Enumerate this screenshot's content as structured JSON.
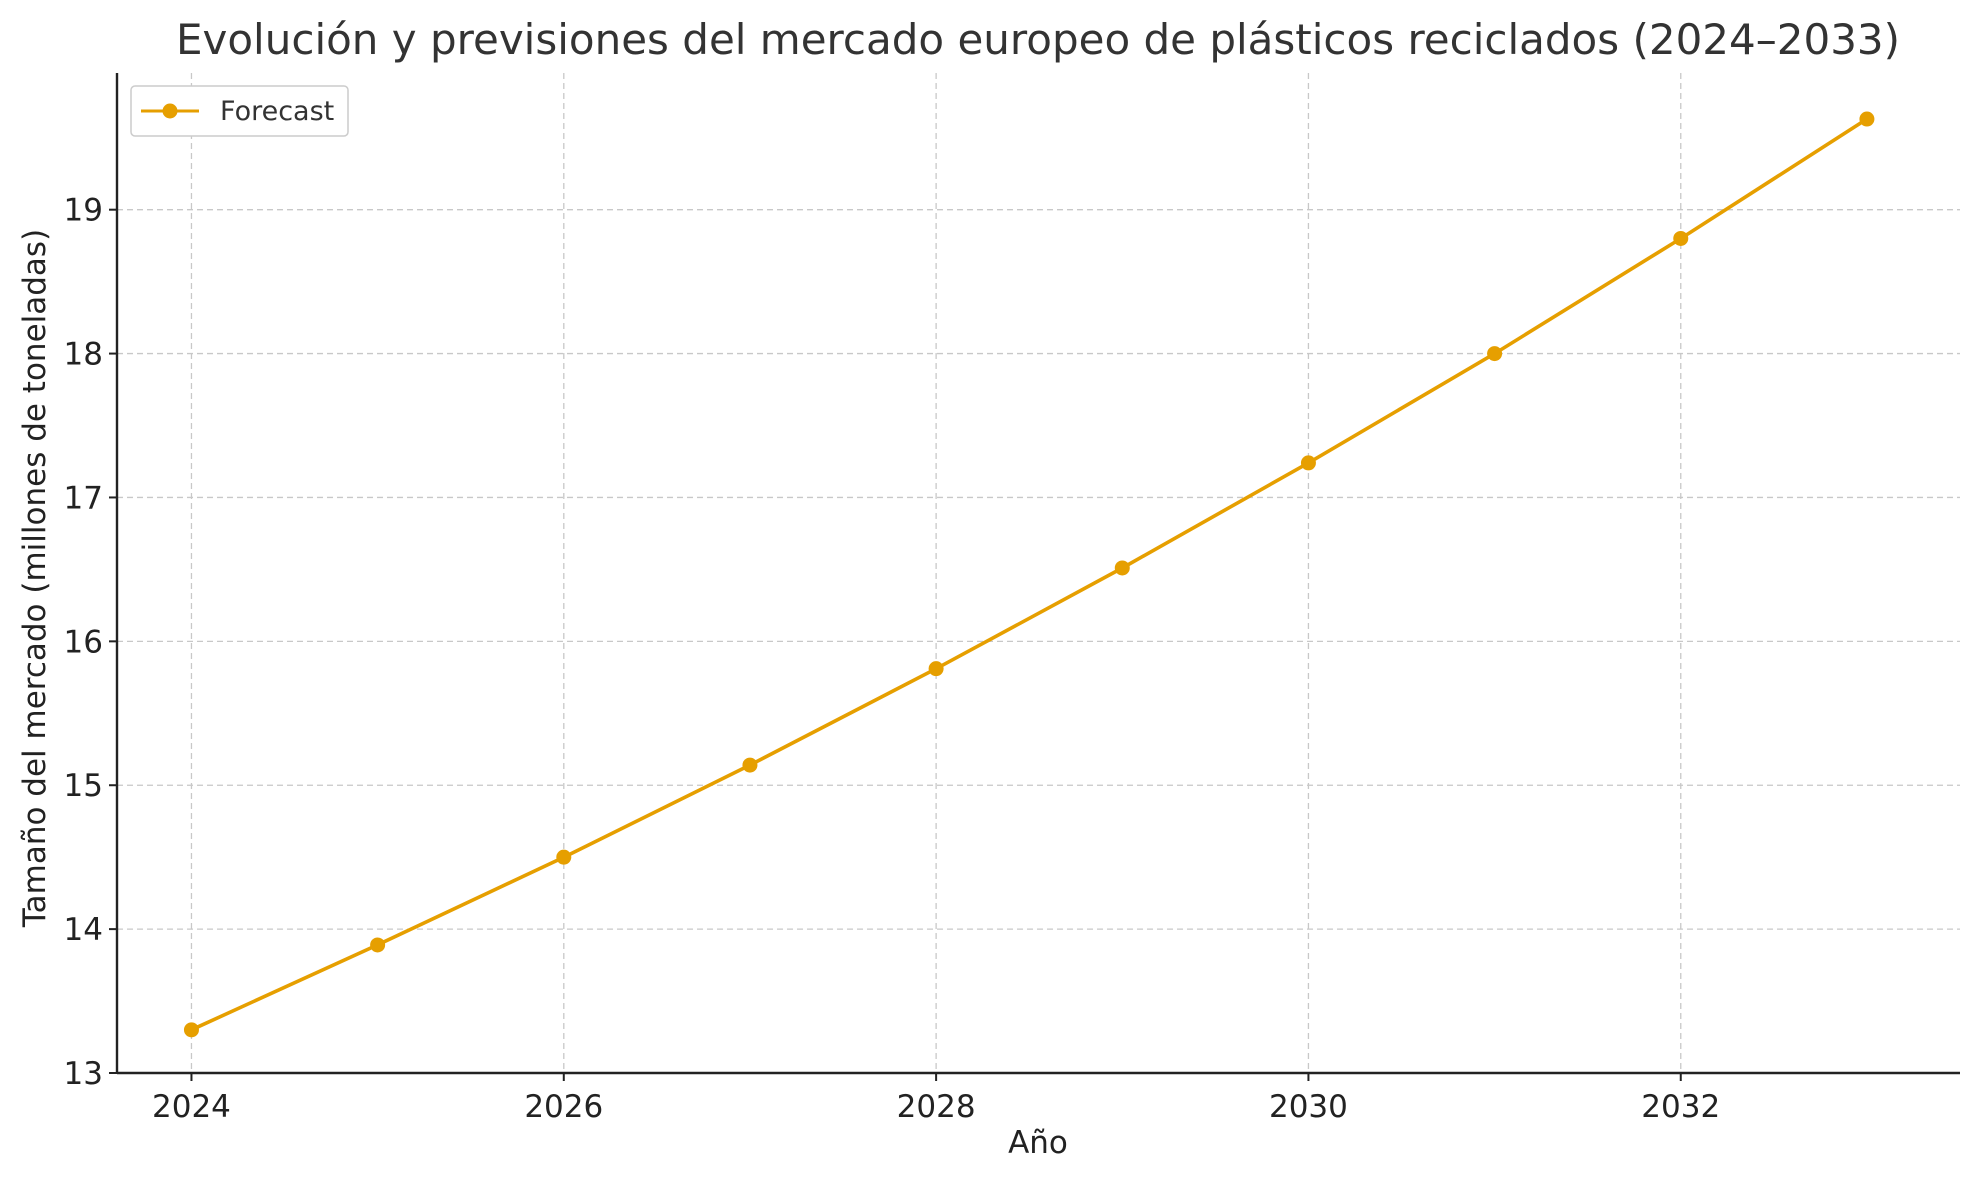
{
  "chart_data": {
    "type": "line",
    "title": "Evolución y previsiones del mercado europeo de plásticos reciclados (2024–2033)",
    "xlabel": "Año",
    "ylabel": "Tamaño del mercado (millones de toneladas)",
    "x": [
      2024,
      2025,
      2026,
      2027,
      2028,
      2029,
      2030,
      2031,
      2032,
      2033
    ],
    "xlim": [
      2023.6,
      2033.5
    ],
    "ylim": [
      13.0,
      19.95
    ],
    "x_ticks": [
      2024,
      2026,
      2028,
      2030,
      2032
    ],
    "x_tick_labels": [
      "2024",
      "2026",
      "2028",
      "2030",
      "2032"
    ],
    "y_ticks": [
      13,
      14,
      15,
      16,
      17,
      18,
      19
    ],
    "y_tick_labels": [
      "13",
      "14",
      "15",
      "16",
      "17",
      "18",
      "19"
    ],
    "grid": true,
    "legend_position": "top-left",
    "series": [
      {
        "name": "Forecast",
        "color": "#E69F00",
        "marker": "circle",
        "values": [
          13.3,
          13.89,
          14.5,
          15.14,
          15.81,
          16.51,
          17.24,
          18.0,
          18.8,
          19.63
        ]
      }
    ]
  }
}
